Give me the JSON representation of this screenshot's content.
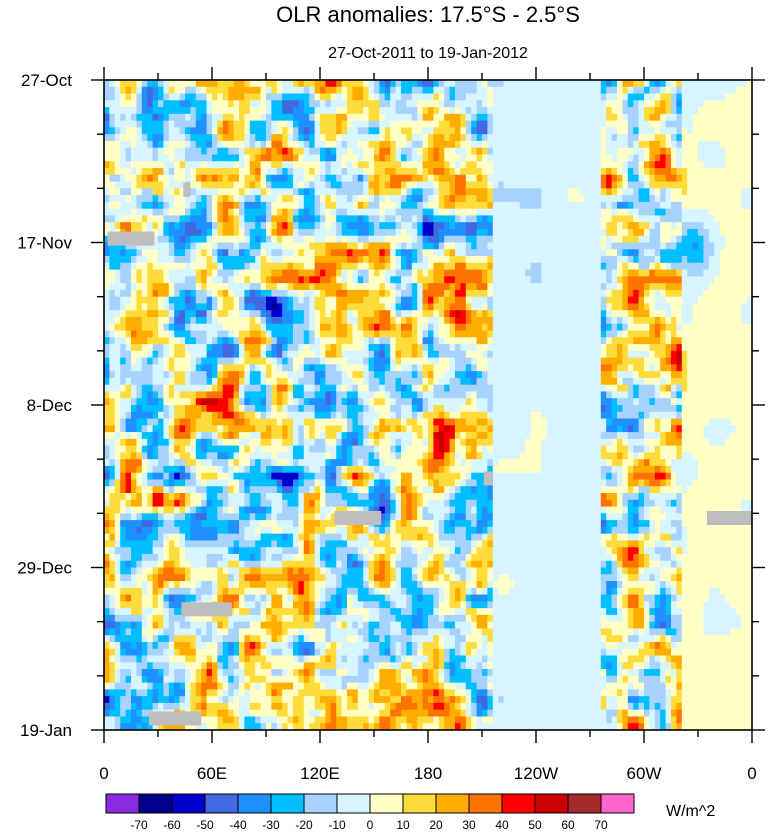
{
  "chart_data": {
    "type": "heatmap",
    "title": "OLR anomalies: 17.5°S - 2.5°S",
    "subtitle": "27-Oct-2011 to 19-Jan-2012",
    "x_ticks": [
      "0",
      "60E",
      "120E",
      "180",
      "120W",
      "60W",
      "0"
    ],
    "x_range_degrees_east": [
      0,
      360
    ],
    "y_ticks": [
      "27-Oct",
      "17-Nov",
      "8-Dec",
      "29-Dec",
      "19-Jan"
    ],
    "y_range_days": [
      0,
      84
    ],
    "colorbar": {
      "unit_label": "W/m^2",
      "levels": [
        -70,
        -60,
        -50,
        -40,
        -30,
        -20,
        -10,
        0,
        10,
        20,
        30,
        40,
        50,
        60,
        70
      ],
      "level_labels": [
        "-70",
        "-60",
        "-50",
        "-40",
        "-30",
        "-20",
        "-10",
        "0",
        "10",
        "20",
        "30",
        "40",
        "50",
        "60",
        "70"
      ],
      "colors": [
        "#8a2be2",
        "#00008b",
        "#0000cd",
        "#4169e1",
        "#1e90ff",
        "#00bfff",
        "#a8d3ff",
        "#d6f5ff",
        "#ffffc6",
        "#ffdc3c",
        "#ffad00",
        "#ff7400",
        "#ff0000",
        "#cd0000",
        "#a52a2a",
        "#ff66cc"
      ]
    },
    "missing_color": "#bebebe",
    "description_features": {
      "longitude_bands": [
        {
          "lon_start": 0,
          "lon_end": 215,
          "variability": "high"
        },
        {
          "lon_start": 215,
          "lon_end": 275,
          "variability": "low",
          "mean": -5
        },
        {
          "lon_start": 275,
          "lon_end": 320,
          "variability": "high"
        },
        {
          "lon_start": 320,
          "lon_end": 360,
          "variability": "low",
          "mean": 3
        }
      ],
      "highlights": [
        {
          "lon": 193,
          "day": 48,
          "value": 55
        },
        {
          "lon": 140,
          "day": 72,
          "value": 45
        },
        {
          "lon": 95,
          "day": 30,
          "value": -55
        },
        {
          "lon": 103,
          "day": 55,
          "value": -60
        },
        {
          "lon": 180,
          "day": 16,
          "value": -50
        },
        {
          "lon": 310,
          "day": 12,
          "value": 55
        },
        {
          "lon": 310,
          "day": 36,
          "value": 50
        },
        {
          "lon": 328,
          "day": 22,
          "value": -45
        }
      ],
      "missing_segments": [
        {
          "lon_start": 2,
          "lon_end": 28,
          "day": 20.5
        },
        {
          "lon_start": 44,
          "lon_end": 48,
          "day": 14.2
        },
        {
          "lon_start": 128,
          "lon_end": 154,
          "day": 56.6
        },
        {
          "lon_start": 43,
          "lon_end": 71,
          "day": 68.4
        },
        {
          "lon_start": 25,
          "lon_end": 54,
          "day": 82.5
        },
        {
          "lon_start": 211,
          "lon_end": 216,
          "day": 51.5
        },
        {
          "lon_start": 335,
          "lon_end": 361,
          "day": 56.6
        }
      ]
    }
  }
}
